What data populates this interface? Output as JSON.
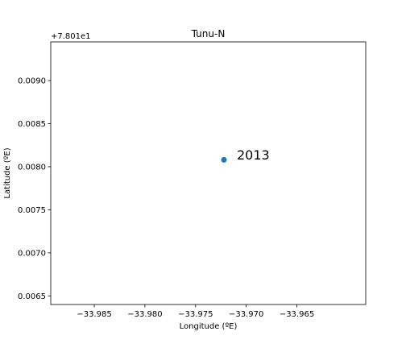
{
  "chart_data": {
    "type": "scatter",
    "title": "Tunu-N",
    "xlabel": "Longitude (ºE)",
    "ylabel": "Latitude (ºE)",
    "y_offset_label": "+7.801e1",
    "xlim": [
      -33.9893,
      -33.9582
    ],
    "ylim": [
      0.0064,
      0.00945
    ],
    "x_ticks": [
      -33.985,
      -33.98,
      -33.975,
      -33.97,
      -33.965
    ],
    "x_tick_labels": [
      "−33.985",
      "−33.980",
      "−33.975",
      "−33.970",
      "−33.965"
    ],
    "y_ticks": [
      0.0065,
      0.007,
      0.0075,
      0.008,
      0.0085,
      0.009
    ],
    "y_tick_labels": [
      "0.0065",
      "0.0070",
      "0.0075",
      "0.0080",
      "0.0085",
      "0.0090"
    ],
    "points": [
      {
        "x": -33.9722,
        "y": 0.00808,
        "label": "2013"
      }
    ],
    "grid": false,
    "point_color": "#1f77b4"
  }
}
